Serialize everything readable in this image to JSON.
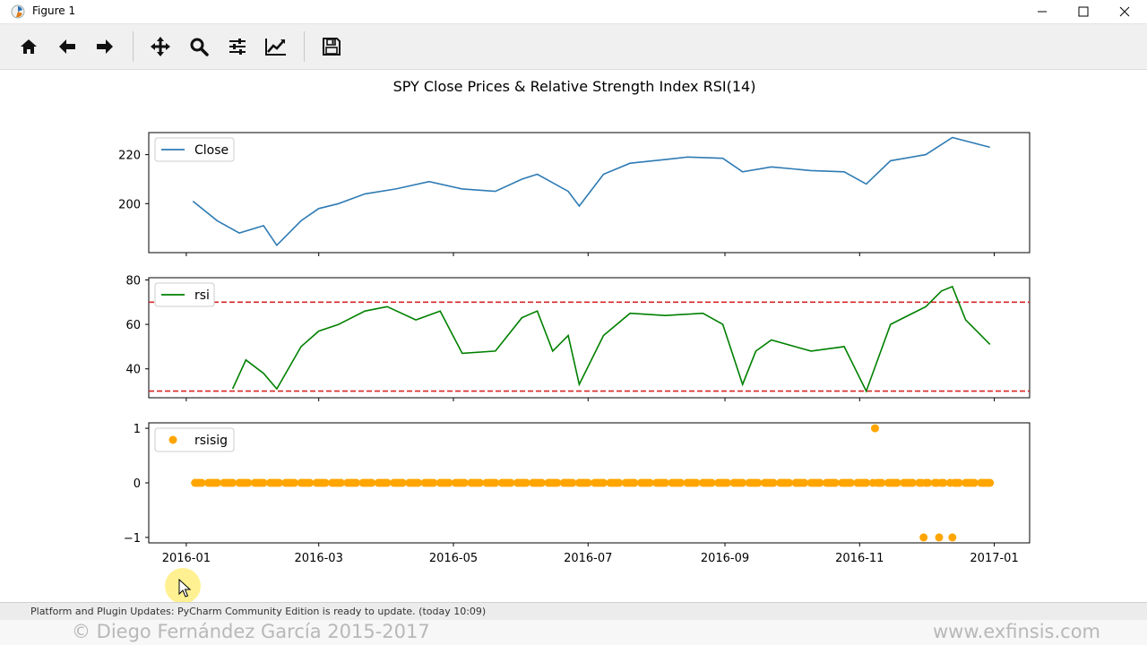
{
  "window": {
    "title": "Figure 1"
  },
  "toolbar": {
    "items": [
      {
        "name": "home-button",
        "icon": "home-icon"
      },
      {
        "name": "back-button",
        "icon": "arrow-left-icon"
      },
      {
        "name": "forward-button",
        "icon": "arrow-right-icon"
      },
      {
        "name": "pan-button",
        "icon": "move-icon"
      },
      {
        "name": "zoom-button",
        "icon": "magnifier-icon"
      },
      {
        "name": "subplots-button",
        "icon": "sliders-icon"
      },
      {
        "name": "edit-axes-button",
        "icon": "line-chart-icon"
      },
      {
        "name": "save-button",
        "icon": "floppy-icon"
      }
    ]
  },
  "figure": {
    "title": "SPY Close Prices & Relative Strength Index RSI(14)"
  },
  "status": {
    "message": "Platform and Plugin Updates: PyCharm Community Edition is ready to update. (today 10:09)"
  },
  "footer": {
    "left": "© Diego Fernández García 2015-2017",
    "right": "www.exfinsis.com"
  },
  "colors": {
    "close": "#2e7bb4",
    "rsi": "#008000",
    "signal": "#ffa500",
    "threshold": "#d62728"
  },
  "chart_data": [
    {
      "type": "line",
      "title": "",
      "legend": {
        "entries": [
          "Close"
        ],
        "placement": "top-left"
      },
      "x": [
        "2016-01-04",
        "2016-01-15",
        "2016-01-25",
        "2016-02-05",
        "2016-02-11",
        "2016-02-22",
        "2016-03-01",
        "2016-03-10",
        "2016-03-22",
        "2016-04-05",
        "2016-04-20",
        "2016-05-05",
        "2016-05-20",
        "2016-06-01",
        "2016-06-08",
        "2016-06-22",
        "2016-06-27",
        "2016-07-08",
        "2016-07-20",
        "2016-08-05",
        "2016-08-15",
        "2016-08-31",
        "2016-09-09",
        "2016-09-22",
        "2016-10-10",
        "2016-10-25",
        "2016-11-04",
        "2016-11-15",
        "2016-12-01",
        "2016-12-13",
        "2016-12-30"
      ],
      "y": [
        201.0,
        193.0,
        188.0,
        191.0,
        183.0,
        193.0,
        198.0,
        200.0,
        204.0,
        206.0,
        209.0,
        206.0,
        205.0,
        210.0,
        212.0,
        205.0,
        199.0,
        212.0,
        216.5,
        218.0,
        219.0,
        218.5,
        213.0,
        215.0,
        213.5,
        213.0,
        208.0,
        217.5,
        220.0,
        227.0,
        223.0
      ],
      "xticks": [
        "2016-01",
        "2016-03",
        "2016-05",
        "2016-07",
        "2016-09",
        "2016-11",
        "2017-01"
      ],
      "yticks": [
        200,
        220
      ],
      "ylim": [
        180,
        229
      ]
    },
    {
      "type": "line",
      "title": "",
      "legend": {
        "entries": [
          "rsi"
        ],
        "placement": "top-left"
      },
      "x": [
        "2016-01-22",
        "2016-01-28",
        "2016-02-05",
        "2016-02-11",
        "2016-02-22",
        "2016-03-01",
        "2016-03-10",
        "2016-03-22",
        "2016-04-01",
        "2016-04-14",
        "2016-04-25",
        "2016-05-05",
        "2016-05-20",
        "2016-06-01",
        "2016-06-08",
        "2016-06-15",
        "2016-06-22",
        "2016-06-27",
        "2016-07-08",
        "2016-07-20",
        "2016-08-05",
        "2016-08-22",
        "2016-08-31",
        "2016-09-09",
        "2016-09-15",
        "2016-09-22",
        "2016-10-10",
        "2016-10-25",
        "2016-11-04",
        "2016-11-15",
        "2016-12-01",
        "2016-12-08",
        "2016-12-13",
        "2016-12-19",
        "2016-12-30"
      ],
      "y": [
        31,
        44,
        38,
        31,
        50,
        57,
        60,
        66,
        68,
        62,
        66,
        47,
        48,
        63,
        66,
        48,
        55,
        33,
        55,
        65,
        64,
        65,
        60,
        33,
        48,
        53,
        48,
        50,
        30,
        60,
        68,
        75,
        77,
        62,
        51
      ],
      "hlines": [
        70,
        30
      ],
      "yticks": [
        40,
        60,
        80
      ],
      "ylim": [
        27,
        81
      ]
    },
    {
      "type": "scatter",
      "title": "",
      "legend": {
        "entries": [
          "rsisig"
        ],
        "placement": "top-left"
      },
      "x_start": "2016-01-05",
      "x_end": "2016-12-30",
      "baseline": 0,
      "points": [
        {
          "x": "2016-11-08",
          "y": 1
        },
        {
          "x": "2016-11-30",
          "y": -1
        },
        {
          "x": "2016-12-07",
          "y": -1
        },
        {
          "x": "2016-12-13",
          "y": -1
        }
      ],
      "yticks": [
        "1",
        "0",
        "−1"
      ],
      "ylim": [
        -1.1,
        1.1
      ]
    }
  ]
}
